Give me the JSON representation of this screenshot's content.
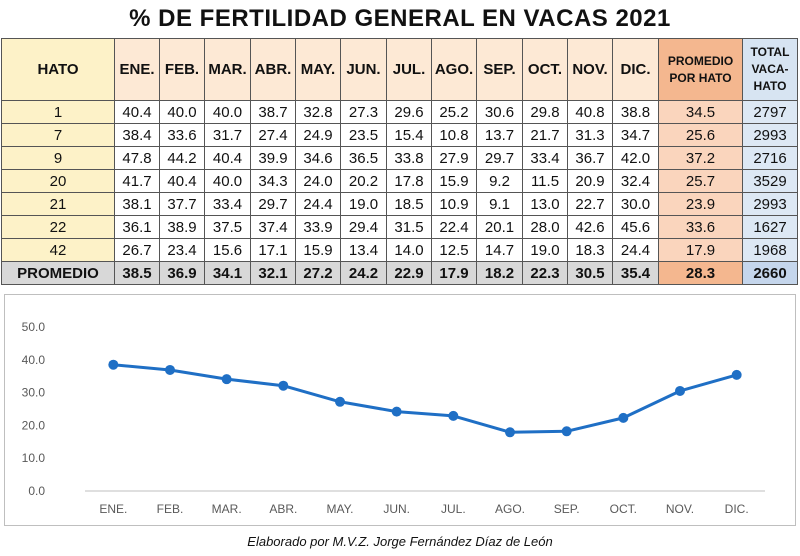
{
  "title": "% DE FERTILIDAD GENERAL EN VACAS 2021",
  "table": {
    "header_hato": "HATO",
    "months": [
      "ENE.",
      "FEB.",
      "MAR.",
      "ABR.",
      "MAY.",
      "JUN.",
      "JUL.",
      "AGO.",
      "SEP.",
      "OCT.",
      "NOV.",
      "DIC."
    ],
    "header_promedio_line1": "PROMEDIO",
    "header_promedio_line2": "POR HATO",
    "header_total_line1": "TOTAL",
    "header_total_line2": "VACA-",
    "header_total_line3": "HATO",
    "rows": [
      {
        "hato": "1",
        "values": [
          "40.4",
          "40.0",
          "40.0",
          "38.7",
          "32.8",
          "27.3",
          "29.6",
          "25.2",
          "30.6",
          "29.8",
          "40.8",
          "38.8"
        ],
        "promedio": "34.5",
        "total": "2797"
      },
      {
        "hato": "7",
        "values": [
          "38.4",
          "33.6",
          "31.7",
          "27.4",
          "24.9",
          "23.5",
          "15.4",
          "10.8",
          "13.7",
          "21.7",
          "31.3",
          "34.7"
        ],
        "promedio": "25.6",
        "total": "2993"
      },
      {
        "hato": "9",
        "values": [
          "47.8",
          "44.2",
          "40.4",
          "39.9",
          "34.6",
          "36.5",
          "33.8",
          "27.9",
          "29.7",
          "33.4",
          "36.7",
          "42.0"
        ],
        "promedio": "37.2",
        "total": "2716"
      },
      {
        "hato": "20",
        "values": [
          "41.7",
          "40.4",
          "40.0",
          "34.3",
          "24.0",
          "20.2",
          "17.8",
          "15.9",
          "9.2",
          "11.5",
          "20.9",
          "32.4"
        ],
        "promedio": "25.7",
        "total": "3529"
      },
      {
        "hato": "21",
        "values": [
          "38.1",
          "37.7",
          "33.4",
          "29.7",
          "24.4",
          "19.0",
          "18.5",
          "10.9",
          "9.1",
          "13.0",
          "22.7",
          "30.0"
        ],
        "promedio": "23.9",
        "total": "2993"
      },
      {
        "hato": "22",
        "values": [
          "36.1",
          "38.9",
          "37.5",
          "37.4",
          "33.9",
          "29.4",
          "31.5",
          "22.4",
          "20.1",
          "28.0",
          "42.6",
          "45.6"
        ],
        "promedio": "33.6",
        "total": "1627"
      },
      {
        "hato": "42",
        "values": [
          "26.7",
          "23.4",
          "15.6",
          "17.1",
          "15.9",
          "13.4",
          "14.0",
          "12.5",
          "14.7",
          "19.0",
          "18.3",
          "24.4"
        ],
        "promedio": "17.9",
        "total": "1968"
      }
    ],
    "average_row": {
      "label": "PROMEDIO",
      "values": [
        "38.5",
        "36.9",
        "34.1",
        "32.1",
        "27.2",
        "24.2",
        "22.9",
        "17.9",
        "18.2",
        "22.3",
        "30.5",
        "35.4"
      ],
      "promedio": "28.3",
      "total": "2660"
    }
  },
  "chart_data": {
    "type": "line",
    "categories": [
      "ENE.",
      "FEB.",
      "MAR.",
      "ABR.",
      "MAY.",
      "JUN.",
      "JUL.",
      "AGO.",
      "SEP.",
      "OCT.",
      "NOV.",
      "DIC."
    ],
    "series": [
      {
        "values": [
          38.5,
          36.9,
          34.1,
          32.1,
          27.2,
          24.2,
          22.9,
          17.9,
          18.2,
          22.3,
          30.5,
          35.4
        ]
      }
    ],
    "ylim": [
      0,
      50
    ],
    "yticks": [
      "0.0",
      "10.0",
      "20.0",
      "30.0",
      "40.0",
      "50.0"
    ],
    "grid": false,
    "legend": "none",
    "line_color": "#1f6fc5"
  },
  "footer": "Elaborado por M.V.Z. Jorge Fernández Díaz de León"
}
